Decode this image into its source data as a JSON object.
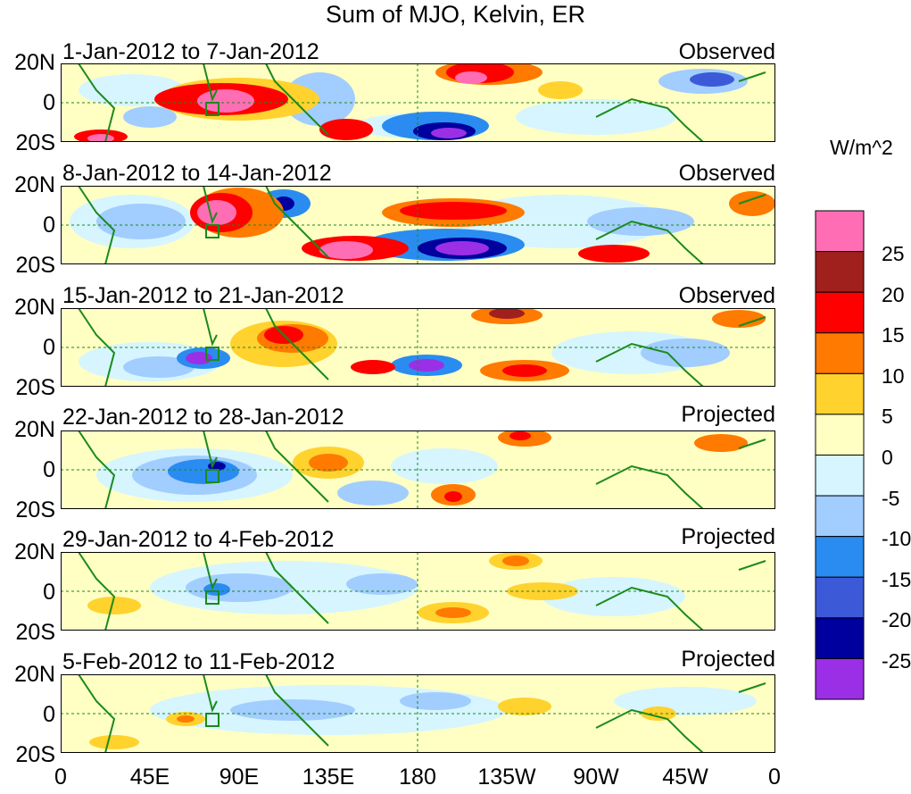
{
  "title": "Sum of MJO, Kelvin, ER",
  "lat_labels": [
    "20N",
    "0",
    "20S"
  ],
  "lon_labels": [
    "0",
    "45E",
    "90E",
    "135E",
    "180",
    "135W",
    "90W",
    "45W",
    "0"
  ],
  "panels": [
    {
      "period": "1-Jan-2012 to 7-Jan-2012",
      "status": "Observed"
    },
    {
      "period": "8-Jan-2012 to 14-Jan-2012",
      "status": "Observed"
    },
    {
      "period": "15-Jan-2012 to 21-Jan-2012",
      "status": "Observed"
    },
    {
      "period": "22-Jan-2012 to 28-Jan-2012",
      "status": "Projected"
    },
    {
      "period": "29-Jan-2012 to 4-Feb-2012",
      "status": "Projected"
    },
    {
      "period": "5-Feb-2012 to 11-Feb-2012",
      "status": "Projected"
    }
  ],
  "colorbar": {
    "unit": "W/m^2",
    "labels": [
      "25",
      "20",
      "15",
      "10",
      "5",
      "0",
      "-5",
      "-10",
      "-15",
      "-20",
      "-25"
    ],
    "colors": [
      "#ff6eb4",
      "#a0201e",
      "#ff0000",
      "#ff7a00",
      "#ffd22e",
      "#ffffc4",
      "#d6f5ff",
      "#a2cdff",
      "#2a8cf0",
      "#3c5ad8",
      "#00009e",
      "#9b2fe6"
    ]
  },
  "colors": {
    "land_outline": "#1b8a1b",
    "equator": "#1b8a1b"
  }
}
